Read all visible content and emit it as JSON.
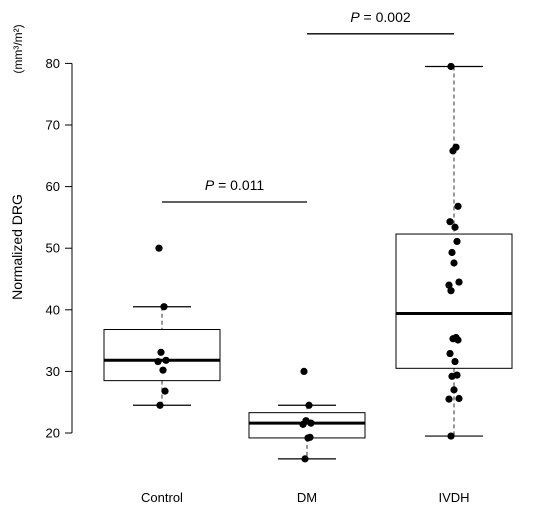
{
  "chart_data": {
    "type": "box",
    "title": "",
    "xlabel": "",
    "ylabel": "Normalized DRG",
    "yunit": "(mm³/m²)",
    "ylim": [
      15,
      82
    ],
    "yticks": [
      20,
      30,
      40,
      50,
      60,
      70,
      80
    ],
    "categories": [
      "Control",
      "DM",
      "IVDH"
    ],
    "boxes": [
      {
        "category": "Control",
        "whisker_low": 24.5,
        "q1": 28.5,
        "median": 31.8,
        "q3": 36.8,
        "whisker_high": 40.5
      },
      {
        "category": "DM",
        "whisker_low": 15.8,
        "q1": 19.2,
        "median": 21.6,
        "q3": 23.3,
        "whisker_high": 24.5
      },
      {
        "category": "IVDH",
        "whisker_low": 19.5,
        "q1": 30.5,
        "median": 39.4,
        "q3": 52.3,
        "whisker_high": 79.5
      }
    ],
    "points": [
      {
        "category": "Control",
        "values": [
          50.0,
          40.5,
          33.1,
          31.8,
          31.6,
          30.2,
          26.8,
          24.5
        ]
      },
      {
        "category": "DM",
        "values": [
          30.0,
          24.5,
          22.0,
          21.6,
          21.4,
          19.2,
          19.3,
          15.8
        ]
      },
      {
        "category": "IVDH",
        "values": [
          79.5,
          66.4,
          65.8,
          56.8,
          54.3,
          53.4,
          51.1,
          49.3,
          47.6,
          44.5,
          44.0,
          43.1,
          35.5,
          35.3,
          35.1,
          32.9,
          31.6,
          29.4,
          29.2,
          27.0,
          25.6,
          25.5,
          19.5
        ]
      }
    ],
    "comparisons": [
      {
        "from": "Control",
        "to": "DM",
        "y": 57.5,
        "p_prefix": "P",
        "p_value": " = 0.011"
      },
      {
        "from": "DM",
        "to": "IVDH",
        "y": 84.8,
        "p_prefix": "P",
        "p_value": " = 0.002"
      }
    ],
    "grid": false,
    "legend": "none"
  }
}
